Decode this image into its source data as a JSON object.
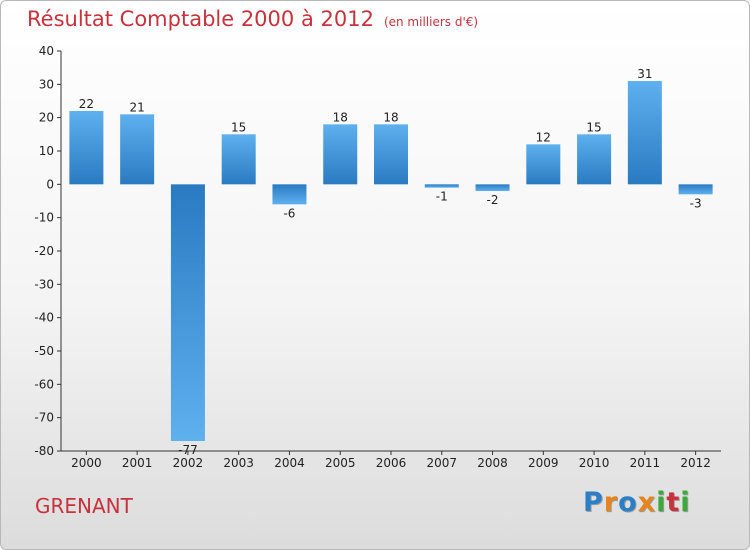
{
  "title": "Résultat Comptable 2000 à 2012",
  "subtitle": "(en milliers d'€)",
  "town": "GRENANT",
  "logo": {
    "letters": [
      "P",
      "r",
      "o",
      "x",
      "i",
      "t",
      "i"
    ],
    "colors": [
      "#2a7fc6",
      "#e8841a",
      "#2a7fc6",
      "#e8841a",
      "#3aaa3a",
      "#c8323c",
      "#3aaa3a"
    ]
  },
  "colors": {
    "title": "#c8323c",
    "bar_top": "#5fb0ee",
    "bar_bottom": "#2a7ac2"
  },
  "chart_data": {
    "type": "bar",
    "title": "Résultat Comptable 2000 à 2012",
    "subtitle": "(en milliers d'€)",
    "categories": [
      "2000",
      "2001",
      "2002",
      "2003",
      "2004",
      "2005",
      "2006",
      "2007",
      "2008",
      "2009",
      "2010",
      "2011",
      "2012"
    ],
    "values": [
      22,
      21,
      -77,
      15,
      -6,
      18,
      18,
      -1,
      -2,
      12,
      15,
      31,
      -3
    ],
    "ylim": [
      -80,
      40
    ],
    "yticks": [
      40,
      30,
      20,
      10,
      0,
      -10,
      -20,
      -30,
      -40,
      -50,
      -60,
      -70,
      -80
    ],
    "grid": false,
    "legend": "none"
  }
}
